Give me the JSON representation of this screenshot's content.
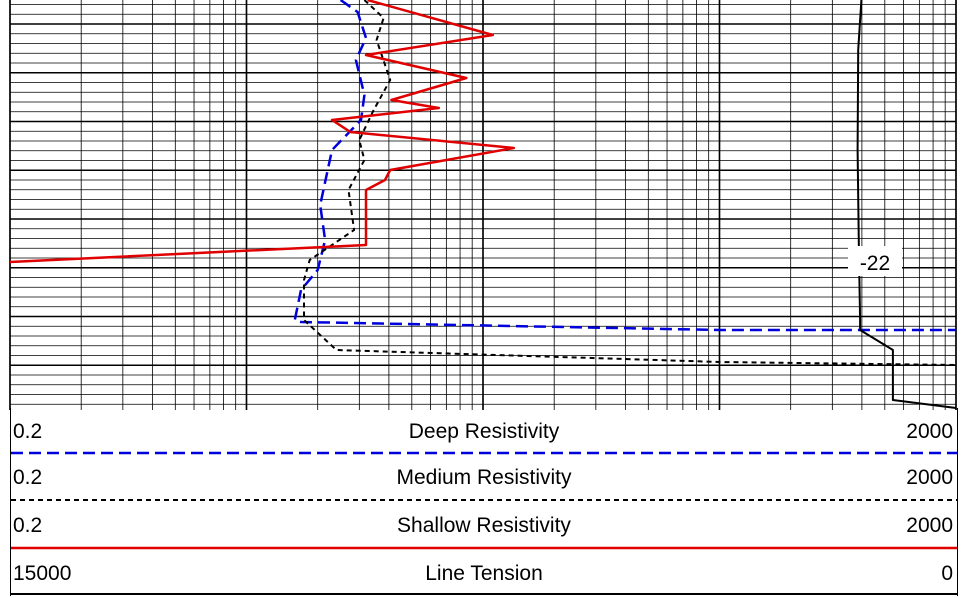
{
  "chart_data": {
    "type": "line",
    "depth_marker_label": "-22",
    "resistivity_scale": "log",
    "tension_scale": "linear",
    "grid": true,
    "tracks": [
      {
        "name": "Deep Resistivity",
        "min": "0.2",
        "max": "2000",
        "color": "#0000dd",
        "style": "dashed"
      },
      {
        "name": "Medium Resistivity",
        "min": "0.2",
        "max": "2000",
        "color": "#000000",
        "style": "dotted"
      },
      {
        "name": "Shallow Resistivity",
        "min": "0.2",
        "max": "2000",
        "color": "#e00000",
        "style": "solid"
      },
      {
        "name": "Line Tension",
        "min": "15000",
        "max": "0",
        "color": "#000000",
        "style": "solid"
      }
    ],
    "series": [
      {
        "name": "Deep Resistivity",
        "x": [
          5.0,
          5.9,
          6.4,
          5.8,
          6.3,
          6.1,
          4.6,
          4.1,
          4.3,
          4.0,
          3.4,
          3.2,
          3.4,
          200,
          2000
        ],
        "y": [
          0,
          12,
          38,
          60,
          95,
          120,
          150,
          205,
          240,
          270,
          290,
          320,
          322,
          330,
          330
        ]
      },
      {
        "name": "Medium Resistivity",
        "x": [
          6.3,
          7.6,
          7.1,
          8.1,
          6.9,
          6.0,
          6.3,
          5.4,
          5.7,
          3.7,
          3.5,
          3.5,
          4.8,
          200,
          2000
        ],
        "y": [
          0,
          18,
          40,
          80,
          110,
          140,
          160,
          190,
          230,
          260,
          280,
          320,
          350,
          362,
          365
        ]
      },
      {
        "name": "Shallow Resistivity",
        "x": [
          6.5,
          22,
          6.4,
          17,
          8.2,
          13,
          4.6,
          5.5,
          27,
          8.1,
          7.7,
          6.4,
          6.4,
          0.2
        ],
        "y": [
          0,
          35,
          55,
          78,
          100,
          108,
          120,
          132,
          148,
          170,
          180,
          190,
          245,
          262
        ]
      },
      {
        "name": "Line Tension",
        "x": [
          1500,
          1550,
          1560,
          1540,
          1520,
          1520,
          1000,
          1000,
          0
        ],
        "y": [
          0,
          50,
          150,
          250,
          320,
          330,
          350,
          400,
          408
        ]
      }
    ]
  }
}
